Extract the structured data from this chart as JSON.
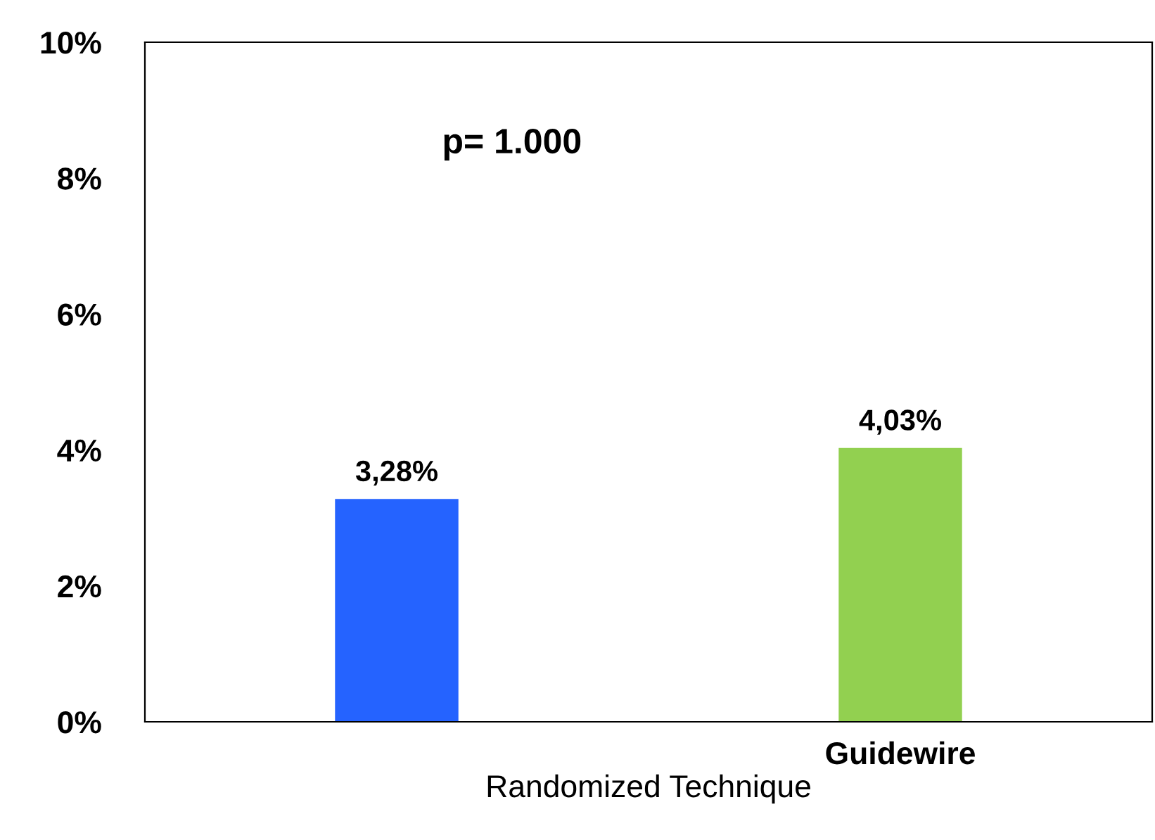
{
  "chart_data": {
    "type": "bar",
    "xlabel": "Randomized Technique",
    "categories": [
      null,
      "Guidewire"
    ],
    "values": [
      3.28,
      4.03
    ],
    "colors": [
      "#2563ff",
      "#92d050"
    ],
    "value_labels": [
      "3,28%",
      "4,03%"
    ],
    "ylim": [
      0,
      10
    ],
    "yticks": [
      {
        "value": 0,
        "label": "0%"
      },
      {
        "value": 2,
        "label": "2%"
      },
      {
        "value": 4,
        "label": "4%"
      },
      {
        "value": 6,
        "label": "6%"
      },
      {
        "value": 8,
        "label": "8%"
      },
      {
        "value": 10,
        "label": "10%"
      }
    ],
    "annotations": [
      "p= 1.000"
    ],
    "grid": false,
    "legend": false
  }
}
